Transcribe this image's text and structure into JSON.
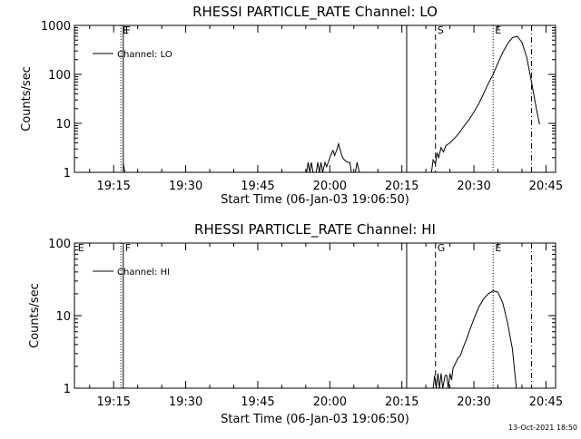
{
  "chart_data": [
    {
      "type": "line",
      "title": "RHESSI PARTICLE_RATE Channel: LO",
      "xlabel": "Start Time (06-Jan-03 19:06:50)",
      "ylabel": "Counts/sec",
      "y_scale": "log",
      "ylim": [
        1,
        1000
      ],
      "y_ticks": [
        "1",
        "10",
        "100",
        "1000"
      ],
      "x_ticks": [
        "19:15",
        "19:30",
        "19:45",
        "20:00",
        "20:15",
        "20:30",
        "20:45"
      ],
      "x_range": [
        "19:06:50",
        "20:47:00"
      ],
      "legend": {
        "label": "Channel: LO",
        "placement": "top-left"
      },
      "markers": [
        {
          "label": "E",
          "time": "19:16:30",
          "style": "dotted"
        },
        {
          "label": "F",
          "time": "19:17:00",
          "style": "solid"
        },
        {
          "label": "",
          "time": "20:16:00",
          "style": "solid"
        },
        {
          "label": "S",
          "time": "20:22:00",
          "style": "dashed"
        },
        {
          "label": "E",
          "time": "20:34:00",
          "style": "dotted"
        },
        {
          "label": "",
          "time": "20:42:00",
          "style": "dashdot"
        }
      ],
      "series": [
        {
          "name": "Channel: LO",
          "segments": [
            [
              [
                "19:17:00",
                1.5
              ],
              [
                "19:17:20",
                1.0
              ]
            ],
            [
              [
                "19:55:10",
                1.0
              ],
              [
                "19:55:30",
                1.6
              ],
              [
                "19:55:50",
                1.0
              ],
              [
                "19:56:10",
                1.6
              ],
              [
                "19:56:30",
                1.0
              ],
              [
                "19:57:10",
                1.0
              ],
              [
                "19:57:30",
                1.6
              ],
              [
                "19:57:50",
                1.0
              ],
              [
                "19:58:10",
                1.6
              ],
              [
                "19:58:30",
                1.0
              ],
              [
                "19:59:00",
                1.6
              ],
              [
                "19:59:20",
                1.3
              ],
              [
                "19:59:40",
                1.6
              ],
              [
                "20:00:10",
                2.2
              ],
              [
                "20:00:40",
                2.8
              ],
              [
                "20:01:00",
                2.2
              ],
              [
                "20:01:30",
                3.0
              ],
              [
                "20:01:50",
                3.8
              ],
              [
                "20:02:20",
                2.5
              ],
              [
                "20:02:40",
                2.0
              ],
              [
                "20:03:00",
                1.8
              ],
              [
                "20:03:40",
                1.6
              ],
              [
                "20:04:10",
                1.6
              ],
              [
                "20:04:30",
                1.0
              ]
            ],
            [
              [
                "20:05:20",
                1.0
              ],
              [
                "20:05:40",
                1.6
              ],
              [
                "20:06:10",
                1.0
              ]
            ],
            [
              [
                "20:21:10",
                1.0
              ],
              [
                "20:21:30",
                1.8
              ],
              [
                "20:22:00",
                1.5
              ],
              [
                "20:22:20",
                2.5
              ],
              [
                "20:22:40",
                2.0
              ],
              [
                "20:23:10",
                3.2
              ],
              [
                "20:23:40",
                2.6
              ],
              [
                "20:24:10",
                3.5
              ],
              [
                "20:25:00",
                4.0
              ],
              [
                "20:26:00",
                5.0
              ],
              [
                "20:27:00",
                6.5
              ],
              [
                "20:28:00",
                9.0
              ],
              [
                "20:29:00",
                12
              ],
              [
                "20:30:00",
                17
              ],
              [
                "20:31:00",
                25
              ],
              [
                "20:32:00",
                40
              ],
              [
                "20:33:00",
                65
              ],
              [
                "20:34:00",
                100
              ],
              [
                "20:35:00",
                170
              ],
              [
                "20:36:00",
                280
              ],
              [
                "20:37:00",
                420
              ],
              [
                "20:38:00",
                560
              ],
              [
                "20:39:00",
                600
              ],
              [
                "20:40:00",
                450
              ],
              [
                "20:41:00",
                220
              ],
              [
                "20:42:00",
                70
              ],
              [
                "20:43:00",
                20
              ],
              [
                "20:43:40",
                9.5
              ]
            ]
          ]
        }
      ]
    },
    {
      "type": "line",
      "title": "RHESSI PARTICLE_RATE Channel: HI",
      "xlabel": "Start Time (06-Jan-03 19:06:50)",
      "ylabel": "Counts/sec",
      "y_scale": "log",
      "ylim": [
        1,
        100
      ],
      "y_ticks": [
        "1",
        "10",
        "100"
      ],
      "x_ticks": [
        "19:15",
        "19:30",
        "19:45",
        "20:00",
        "20:15",
        "20:30",
        "20:45"
      ],
      "x_range": [
        "19:06:50",
        "20:47:00"
      ],
      "legend": {
        "label": "Channel: HI",
        "placement": "top-left"
      },
      "markers": [
        {
          "label": "E",
          "time": "19:07:10",
          "style": "none"
        },
        {
          "label": "",
          "time": "19:16:30",
          "style": "dotted"
        },
        {
          "label": "F",
          "time": "19:17:00",
          "style": "solid"
        },
        {
          "label": "",
          "time": "20:16:00",
          "style": "solid"
        },
        {
          "label": "G",
          "time": "20:22:00",
          "style": "dashed"
        },
        {
          "label": "E",
          "time": "20:34:00",
          "style": "dotted"
        },
        {
          "label": "",
          "time": "20:42:00",
          "style": "dashdot"
        }
      ],
      "series": [
        {
          "name": "Channel: HI",
          "segments": [
            [
              [
                "20:21:30",
                1.0
              ],
              [
                "20:21:50",
                1.5
              ],
              [
                "20:22:10",
                1.0
              ],
              [
                "20:22:30",
                1.6
              ],
              [
                "20:22:50",
                1.0
              ],
              [
                "20:23:10",
                1.6
              ],
              [
                "20:23:30",
                1.0
              ],
              [
                "20:24:00",
                1.5
              ],
              [
                "20:24:20",
                1.5
              ],
              [
                "20:24:40",
                1.0
              ],
              [
                "20:25:00",
                1.6
              ],
              [
                "20:25:20",
                1.3
              ],
              [
                "20:25:40",
                1.9
              ],
              [
                "20:26:10",
                2.2
              ],
              [
                "20:26:40",
                2.6
              ],
              [
                "20:27:10",
                2.8
              ],
              [
                "20:27:40",
                3.5
              ],
              [
                "20:28:20",
                4.5
              ],
              [
                "20:29:00",
                6.0
              ],
              [
                "20:30:00",
                9.0
              ],
              [
                "20:31:00",
                13
              ],
              [
                "20:32:00",
                17
              ],
              [
                "20:33:00",
                20
              ],
              [
                "20:34:00",
                22
              ],
              [
                "20:35:00",
                21
              ],
              [
                "20:36:00",
                15
              ],
              [
                "20:37:00",
                8.0
              ],
              [
                "20:38:00",
                3.5
              ],
              [
                "20:38:50",
                1.0
              ]
            ]
          ]
        }
      ]
    }
  ],
  "footer": {
    "timestamp": "13-Oct-2021 18:50"
  }
}
